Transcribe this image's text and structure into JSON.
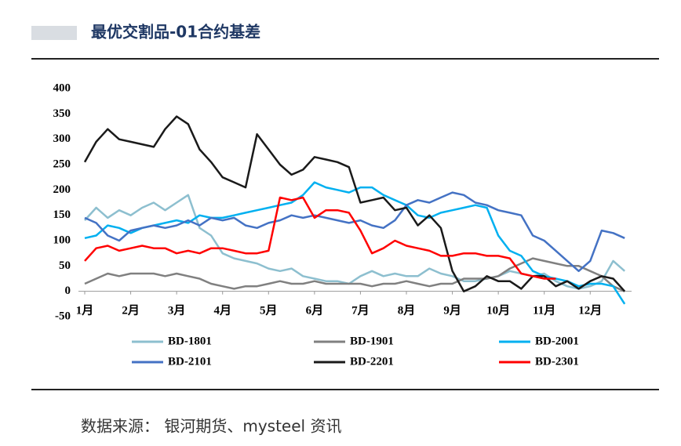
{
  "header": {
    "title": "最优交割品-01合约基差"
  },
  "source": "数据来源： 银河期货、mysteel 资讯",
  "chart_data": {
    "type": "line",
    "x": [
      1,
      1.25,
      1.5,
      1.75,
      2,
      2.25,
      2.5,
      2.75,
      3,
      3.25,
      3.5,
      3.75,
      4,
      4.25,
      4.5,
      4.75,
      5,
      5.25,
      5.5,
      5.75,
      6,
      6.25,
      6.5,
      6.75,
      7,
      7.25,
      7.5,
      7.75,
      8,
      8.25,
      8.5,
      8.75,
      9,
      9.25,
      9.5,
      9.75,
      10,
      10.25,
      10.5,
      10.75,
      11,
      11.25,
      11.5,
      11.75,
      12,
      12.25,
      12.5,
      12.75
    ],
    "xlim": [
      1,
      12.9
    ],
    "xticks": [
      {
        "value": 1,
        "label": "1月"
      },
      {
        "value": 2,
        "label": "2月"
      },
      {
        "value": 3,
        "label": "3月"
      },
      {
        "value": 4,
        "label": "4月"
      },
      {
        "value": 5,
        "label": "5月"
      },
      {
        "value": 6,
        "label": "6月"
      },
      {
        "value": 7,
        "label": "7月"
      },
      {
        "value": 8,
        "label": "8月"
      },
      {
        "value": 9,
        "label": "9月"
      },
      {
        "value": 10,
        "label": "10月"
      },
      {
        "value": 11,
        "label": "11月"
      },
      {
        "value": 12,
        "label": "12月"
      }
    ],
    "ylim": [
      -50,
      400
    ],
    "yticks": [
      -50,
      0,
      50,
      100,
      150,
      200,
      250,
      300,
      350,
      400
    ],
    "series": [
      {
        "name": "BD-1801",
        "color": "#8dbfcf",
        "values": [
          140,
          165,
          145,
          160,
          150,
          165,
          175,
          160,
          175,
          190,
          125,
          110,
          75,
          65,
          60,
          55,
          45,
          40,
          45,
          30,
          25,
          20,
          20,
          15,
          30,
          40,
          30,
          35,
          30,
          30,
          45,
          35,
          30,
          20,
          20,
          25,
          30,
          40,
          35,
          30,
          35,
          20,
          10,
          5,
          10,
          20,
          60,
          40
        ]
      },
      {
        "name": "BD-1901",
        "color": "#808080",
        "values": [
          15,
          25,
          35,
          30,
          35,
          35,
          35,
          30,
          35,
          30,
          25,
          15,
          10,
          5,
          10,
          10,
          15,
          20,
          15,
          15,
          20,
          15,
          15,
          15,
          15,
          10,
          15,
          15,
          20,
          15,
          10,
          15,
          15,
          25,
          25,
          25,
          30,
          45,
          55,
          65,
          60,
          55,
          50,
          50,
          40,
          30,
          10,
          0
        ]
      },
      {
        "name": "BD-2001",
        "color": "#00b0f0",
        "values": [
          105,
          110,
          130,
          125,
          115,
          125,
          130,
          135,
          140,
          135,
          150,
          145,
          145,
          150,
          155,
          160,
          165,
          170,
          175,
          190,
          215,
          205,
          200,
          195,
          205,
          205,
          190,
          180,
          170,
          150,
          145,
          155,
          160,
          165,
          170,
          165,
          110,
          80,
          70,
          40,
          30,
          25,
          20,
          10,
          15,
          15,
          10,
          -25
        ]
      },
      {
        "name": "BD-2101",
        "color": "#4472c4",
        "values": [
          145,
          135,
          110,
          100,
          120,
          125,
          130,
          125,
          130,
          140,
          130,
          145,
          140,
          145,
          130,
          125,
          135,
          140,
          150,
          145,
          150,
          145,
          140,
          135,
          140,
          130,
          125,
          140,
          170,
          180,
          175,
          185,
          195,
          190,
          175,
          170,
          160,
          155,
          150,
          110,
          100,
          80,
          60,
          40,
          60,
          120,
          115,
          105
        ]
      },
      {
        "name": "BD-2201",
        "color": "#1a1a1a",
        "values": [
          255,
          295,
          320,
          300,
          295,
          290,
          285,
          320,
          345,
          330,
          280,
          255,
          225,
          215,
          205,
          310,
          280,
          250,
          230,
          240,
          265,
          260,
          255,
          245,
          175,
          180,
          185,
          160,
          165,
          130,
          150,
          125,
          40,
          0,
          10,
          30,
          20,
          20,
          5,
          30,
          30,
          10,
          20,
          5,
          20,
          30,
          25,
          0
        ]
      },
      {
        "name": "BD-2301",
        "color": "#ff0000",
        "values": [
          60,
          85,
          90,
          80,
          85,
          90,
          85,
          85,
          75,
          80,
          75,
          85,
          85,
          80,
          75,
          75,
          80,
          185,
          180,
          185,
          145,
          160,
          160,
          155,
          120,
          75,
          85,
          100,
          90,
          85,
          80,
          70,
          70,
          75,
          75,
          70,
          70,
          65,
          35,
          30,
          25,
          25,
          null,
          null,
          null,
          null,
          null,
          null
        ]
      }
    ]
  }
}
